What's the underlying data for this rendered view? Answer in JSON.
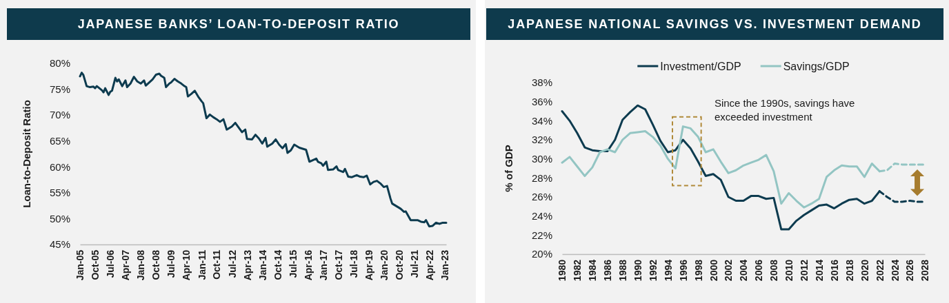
{
  "chart_data": [
    {
      "type": "line",
      "title": "JAPANESE BANKS’ LOAN-TO-DEPOSIT RATIO",
      "ylabel": "Loan-to-Deposit Ratio",
      "x": [
        "2005-01",
        "2005-02",
        "2005-03",
        "2005-05",
        "2005-07",
        "2005-09",
        "2005-10",
        "2005-11",
        "2006-02",
        "2006-03",
        "2006-04",
        "2006-06",
        "2006-07",
        "2006-08",
        "2006-10",
        "2006-11",
        "2006-12",
        "2007-02",
        "2007-04",
        "2007-05",
        "2007-07",
        "2007-09",
        "2007-11",
        "2008-01",
        "2008-03",
        "2008-04",
        "2008-06",
        "2008-08",
        "2008-10",
        "2008-12",
        "2009-01",
        "2009-03",
        "2009-04",
        "2009-06",
        "2009-07",
        "2009-09",
        "2009-11",
        "2010-01",
        "2010-03",
        "2010-04",
        "2010-05",
        "2010-07",
        "2010-09",
        "2010-11",
        "2011-01",
        "2011-02",
        "2011-04",
        "2011-06",
        "2011-08",
        "2011-10",
        "2011-12",
        "2012-02",
        "2012-04",
        "2012-07",
        "2012-09",
        "2012-11",
        "2013-01",
        "2013-03",
        "2013-04",
        "2013-07",
        "2013-09",
        "2013-11",
        "2014-01",
        "2014-03",
        "2014-04",
        "2014-07",
        "2014-09",
        "2014-11",
        "2015-01",
        "2015-03",
        "2015-04",
        "2015-06",
        "2015-08",
        "2015-11",
        "2016-03",
        "2016-05",
        "2016-07",
        "2016-09",
        "2016-10",
        "2016-12",
        "2017-01",
        "2017-03",
        "2017-04",
        "2017-07",
        "2017-09",
        "2017-10",
        "2018-01",
        "2018-02",
        "2018-04",
        "2018-06",
        "2018-09",
        "2018-11",
        "2019-01",
        "2019-03",
        "2019-05",
        "2019-07",
        "2019-09",
        "2019-11",
        "2020-01",
        "2020-03",
        "2020-05",
        "2020-06",
        "2020-09",
        "2020-11",
        "2021-01",
        "2021-02",
        "2021-05",
        "2021-07",
        "2021-09",
        "2021-11",
        "2022-01",
        "2022-02",
        "2022-04",
        "2022-06",
        "2022-08",
        "2022-10",
        "2022-12",
        "2023-02"
      ],
      "series": [
        {
          "color": "#0d3b4f",
          "values": [
            77.5,
            78.2,
            77.8,
            75.6,
            75.4,
            75.5,
            75.2,
            75.6,
            74.8,
            74.4,
            75.2,
            73.9,
            74.5,
            74.7,
            77.2,
            76.5,
            76.9,
            75.6,
            76.7,
            75.4,
            76.1,
            77.4,
            76.5,
            76.1,
            76.7,
            75.7,
            76.3,
            76.9,
            77.8,
            78.0,
            77.6,
            77.2,
            75.4,
            76.1,
            76.3,
            77.0,
            76.5,
            76.1,
            75.6,
            75.4,
            73.6,
            74.1,
            74.7,
            73.6,
            72.7,
            72.3,
            69.4,
            70.1,
            69.6,
            69.2,
            68.7,
            69.2,
            67.2,
            67.8,
            68.5,
            67.6,
            66.7,
            67.2,
            65.4,
            65.3,
            66.2,
            65.5,
            64.5,
            65.6,
            63.9,
            64.5,
            65.3,
            64.3,
            63.6,
            64.4,
            62.7,
            63.2,
            64.3,
            63.7,
            63.3,
            61.0,
            61.3,
            61.6,
            61.0,
            60.7,
            60.2,
            61.0,
            59.4,
            59.5,
            60.1,
            59.4,
            59.0,
            59.6,
            58.1,
            58.0,
            58.4,
            58.1,
            58.0,
            58.3,
            56.6,
            57.1,
            57.3,
            56.8,
            56.1,
            56.3,
            53.9,
            52.9,
            52.3,
            51.9,
            51.3,
            51.4,
            49.7,
            49.7,
            49.7,
            49.4,
            49.3,
            49.7,
            48.5,
            48.6,
            49.2,
            49.0,
            49.2,
            49.2
          ]
        }
      ],
      "xlim": [
        "2005-01",
        "2023-02"
      ],
      "xticks": [
        {
          "value": "2005-01",
          "label": "Jan-05"
        },
        {
          "value": "2005-10",
          "label": "Oct-05"
        },
        {
          "value": "2006-07",
          "label": "Jul-06"
        },
        {
          "value": "2007-04",
          "label": "Apr-07"
        },
        {
          "value": "2008-01",
          "label": "Jan-08"
        },
        {
          "value": "2008-10",
          "label": "Oct-08"
        },
        {
          "value": "2009-07",
          "label": "Jul-09"
        },
        {
          "value": "2010-04",
          "label": "Apr-10"
        },
        {
          "value": "2011-01",
          "label": "Jan-11"
        },
        {
          "value": "2011-10",
          "label": "Oct-11"
        },
        {
          "value": "2012-07",
          "label": "Jul-12"
        },
        {
          "value": "2013-04",
          "label": "Apr-13"
        },
        {
          "value": "2014-01",
          "label": "Jan-14"
        },
        {
          "value": "2014-10",
          "label": "Oct-14"
        },
        {
          "value": "2015-07",
          "label": "Jul-15"
        },
        {
          "value": "2016-04",
          "label": "Apr-16"
        },
        {
          "value": "2017-01",
          "label": "Jan-17"
        },
        {
          "value": "2017-10",
          "label": "Oct-17"
        },
        {
          "value": "2018-07",
          "label": "Jul-18"
        },
        {
          "value": "2019-04",
          "label": "Apr-19"
        },
        {
          "value": "2020-01",
          "label": "Jan-20"
        },
        {
          "value": "2020-10",
          "label": "Oct-20"
        },
        {
          "value": "2021-07",
          "label": "Jul-21"
        },
        {
          "value": "2022-04",
          "label": "Apr-22"
        },
        {
          "value": "2023-01",
          "label": "Jan-23"
        }
      ],
      "ylim": [
        45,
        80
      ],
      "yticks": [
        {
          "value": 45,
          "label": "45%"
        },
        {
          "value": 50,
          "label": "50%"
        },
        {
          "value": 55,
          "label": "55%"
        },
        {
          "value": 60,
          "label": "60%"
        },
        {
          "value": 65,
          "label": "65%"
        },
        {
          "value": 70,
          "label": "70%"
        },
        {
          "value": 75,
          "label": "75%"
        },
        {
          "value": 80,
          "label": "80%"
        }
      ],
      "line_style": "solid"
    },
    {
      "type": "line",
      "title": "JAPANESE NATIONAL SAVINGS VS. INVESTMENT DEMAND",
      "ylabel": "% of GDP",
      "annotations": [
        "Since the 1990s, savings have exceeded investment"
      ],
      "x": [
        1980,
        1981,
        1982,
        1983,
        1984,
        1985,
        1986,
        1987,
        1988,
        1989,
        1990,
        1991,
        1992,
        1993,
        1994,
        1995,
        1996,
        1997,
        1998,
        1999,
        2000,
        2001,
        2002,
        2003,
        2004,
        2005,
        2006,
        2007,
        2008,
        2009,
        2010,
        2011,
        2012,
        2013,
        2014,
        2015,
        2016,
        2017,
        2018,
        2019,
        2020,
        2021,
        2022
      ],
      "series": [
        {
          "name": "Investment/GDP",
          "color": "#0d3b4f",
          "values": [
            35.0,
            34.0,
            32.7,
            31.2,
            30.9,
            30.8,
            30.8,
            32.0,
            34.1,
            34.9,
            35.6,
            35.2,
            33.6,
            31.9,
            30.7,
            30.9,
            32.0,
            31.1,
            29.7,
            28.2,
            28.4,
            27.8,
            26.0,
            25.6,
            25.6,
            26.1,
            26.1,
            25.8,
            25.9,
            22.6,
            22.6,
            23.5,
            24.1,
            24.6,
            25.1,
            25.2,
            24.8,
            25.3,
            25.7,
            25.8,
            25.3,
            25.6,
            26.6
          ]
        },
        {
          "name": "Savings/GDP",
          "color": "#93c5c3",
          "values": [
            29.6,
            30.2,
            29.2,
            28.2,
            29.1,
            30.7,
            31.0,
            30.7,
            32.0,
            32.7,
            32.8,
            32.9,
            32.3,
            31.4,
            30.0,
            29.0,
            33.4,
            33.2,
            32.3,
            30.7,
            31.0,
            29.7,
            28.5,
            28.8,
            29.3,
            29.6,
            29.9,
            30.4,
            28.7,
            25.3,
            26.4,
            25.6,
            24.9,
            25.3,
            25.8,
            28.1,
            28.8,
            29.3,
            29.2,
            29.2,
            28.1,
            29.5,
            28.7
          ]
        },
        {
          "color": "#0d3b4f",
          "line_style": "dashed",
          "x": [
            2022,
            2023,
            2024,
            2025,
            2026,
            2027,
            2028
          ],
          "values": [
            26.6,
            26.0,
            25.5,
            25.5,
            25.6,
            25.5,
            25.5
          ]
        },
        {
          "color": "#93c5c3",
          "line_style": "dashed",
          "x": [
            2022,
            2023,
            2024,
            2025,
            2026,
            2027,
            2028
          ],
          "values": [
            28.7,
            28.8,
            29.5,
            29.4,
            29.4,
            29.4,
            29.4
          ]
        }
      ],
      "xlim": [
        1980,
        2028
      ],
      "xticks": [
        1980,
        1982,
        1984,
        1986,
        1988,
        1990,
        1992,
        1994,
        1996,
        1998,
        2000,
        2002,
        2004,
        2006,
        2008,
        2010,
        2012,
        2014,
        2016,
        2018,
        2020,
        2022,
        2024,
        2026,
        2028
      ],
      "ylim": [
        20,
        38
      ],
      "yticks": [
        {
          "value": 20,
          "label": "20%"
        },
        {
          "value": 22,
          "label": "22%"
        },
        {
          "value": 24,
          "label": "24%"
        },
        {
          "value": 26,
          "label": "26%"
        },
        {
          "value": 28,
          "label": "28%"
        },
        {
          "value": 30,
          "label": "30%"
        },
        {
          "value": 32,
          "label": "32%"
        },
        {
          "value": 34,
          "label": "34%"
        },
        {
          "value": 36,
          "label": "36%"
        },
        {
          "value": 38,
          "label": "38%"
        }
      ],
      "legend": "top",
      "line_style": "solid"
    }
  ]
}
